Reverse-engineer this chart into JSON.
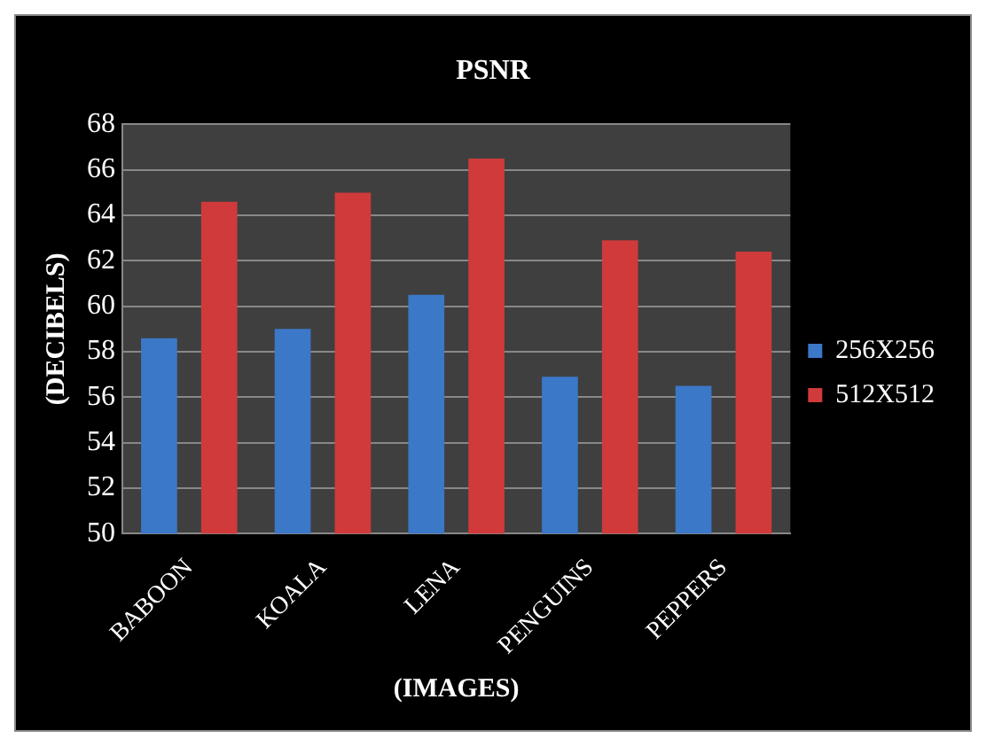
{
  "chart_data": {
    "type": "bar",
    "title": "PSNR",
    "xlabel": "(IMAGES)",
    "ylabel": "(DECIBELS)",
    "categories": [
      "BABOON",
      "KOALA",
      "LENA",
      "PENGUINS",
      "PEPPERS"
    ],
    "series": [
      {
        "name": "256X256",
        "color": "#3b78c8",
        "values": [
          58.6,
          59.0,
          60.5,
          56.9,
          56.5
        ]
      },
      {
        "name": "512X512",
        "color": "#d03a3a",
        "values": [
          64.6,
          65.0,
          66.5,
          62.9,
          62.4
        ]
      }
    ],
    "ylim": [
      50,
      68
    ],
    "yticks": [
      50,
      52,
      54,
      56,
      58,
      60,
      62,
      64,
      66,
      68
    ],
    "grid": "y",
    "legend": "right"
  }
}
